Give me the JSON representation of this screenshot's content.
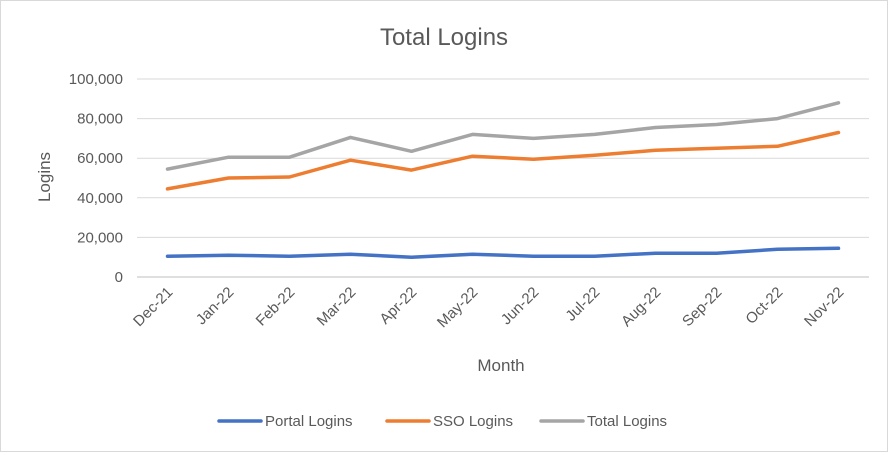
{
  "chart_data": {
    "type": "line",
    "title": "Total Logins",
    "xlabel": "Month",
    "ylabel": "Logins",
    "categories": [
      "Dec-21",
      "Jan-22",
      "Feb-22",
      "Mar-22",
      "Apr-22",
      "May-22",
      "Jun-22",
      "Jul-22",
      "Aug-22",
      "Sep-22",
      "Oct-22",
      "Nov-22"
    ],
    "ylim": [
      0,
      100000
    ],
    "yticks": [
      0,
      20000,
      40000,
      60000,
      80000,
      100000
    ],
    "ytick_labels": [
      "0",
      "20,000",
      "40,000",
      "60,000",
      "80,000",
      "100,000"
    ],
    "grid": true,
    "legend_position": "bottom",
    "series": [
      {
        "name": "Portal Logins",
        "color": "#4472c4",
        "values": [
          10500,
          11000,
          10500,
          11500,
          10000,
          11500,
          10500,
          10500,
          12000,
          12000,
          14000,
          14500
        ]
      },
      {
        "name": "SSO Logins",
        "color": "#ed7d31",
        "values": [
          44500,
          50000,
          50500,
          59000,
          54000,
          61000,
          59500,
          61500,
          64000,
          65000,
          66000,
          73000
        ]
      },
      {
        "name": "Total Logins",
        "color": "#a5a5a5",
        "values": [
          54500,
          60500,
          60500,
          70500,
          63500,
          72000,
          70000,
          72000,
          75500,
          77000,
          80000,
          88000
        ]
      }
    ]
  }
}
